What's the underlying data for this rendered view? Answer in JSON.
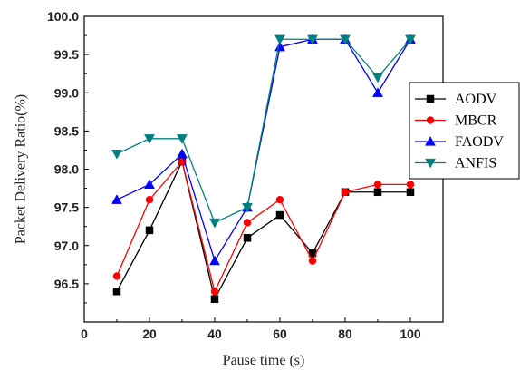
{
  "chart_data": {
    "type": "line",
    "xlabel": "Pause time (s)",
    "ylabel": "Packet Delivery Ratio(%)",
    "xlim": [
      0,
      110
    ],
    "ylim": [
      96.0,
      100.0
    ],
    "x_ticks": [
      "0",
      "20",
      "40",
      "60",
      "80",
      "100"
    ],
    "y_ticks": [
      "96.5",
      "97.0",
      "97.5",
      "98.0",
      "98.5",
      "99.0",
      "99.5",
      "100.0"
    ],
    "grid": false,
    "legend_position": "right",
    "x": [
      10,
      20,
      30,
      40,
      50,
      60,
      70,
      80,
      90,
      100
    ],
    "series": [
      {
        "name": "AODV",
        "color": "#000000",
        "marker": "square",
        "values": [
          96.4,
          97.2,
          98.1,
          96.3,
          97.1,
          97.4,
          96.9,
          97.7,
          97.7,
          97.7
        ]
      },
      {
        "name": "MBCR",
        "color": "#ff0000",
        "marker": "circle",
        "values": [
          96.6,
          97.6,
          98.1,
          96.4,
          97.3,
          97.6,
          96.8,
          97.7,
          97.8,
          97.8
        ]
      },
      {
        "name": "FAODV",
        "color": "#0000ff",
        "marker": "triangle-up",
        "values": [
          97.6,
          97.8,
          98.2,
          96.8,
          97.5,
          99.6,
          99.7,
          99.7,
          99.0,
          99.7
        ]
      },
      {
        "name": "ANFIS",
        "color": "#008080",
        "marker": "triangle-down",
        "values": [
          98.2,
          98.4,
          98.4,
          97.3,
          97.5,
          99.7,
          99.7,
          99.7,
          99.2,
          99.7
        ]
      }
    ]
  }
}
